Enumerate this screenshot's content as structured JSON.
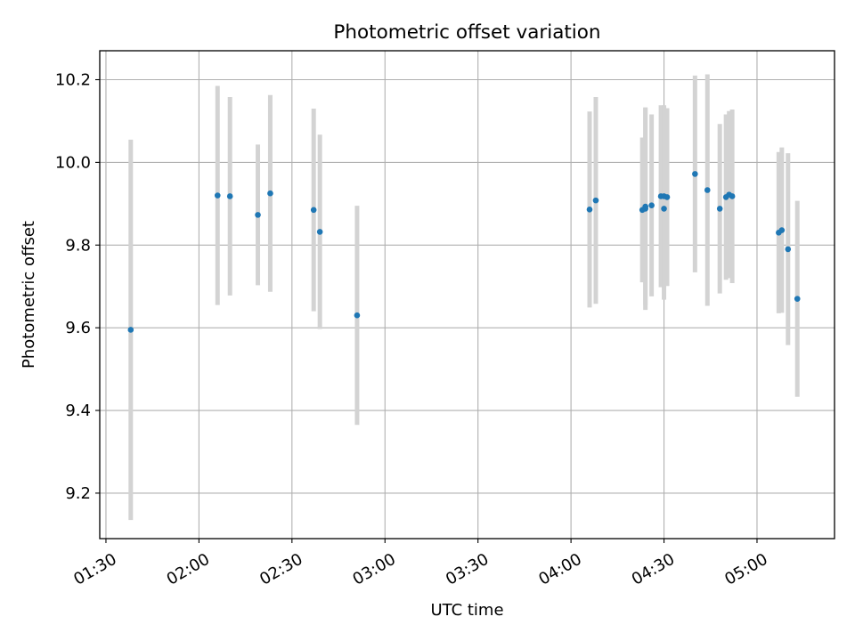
{
  "chart_data": {
    "type": "scatter",
    "title": "Photometric offset variation",
    "xlabel": "UTC time",
    "ylabel": "Photometric offset",
    "x_tick_labels": [
      "01:30",
      "02:00",
      "02:30",
      "03:00",
      "03:30",
      "04:00",
      "04:30",
      "05:00"
    ],
    "y_tick_labels": [
      "9.2",
      "9.4",
      "9.6",
      "9.8",
      "10.0",
      "10.2"
    ],
    "ylim": [
      9.09,
      10.27
    ],
    "xlim": [
      "01:28",
      "05:25"
    ],
    "grid": true,
    "marker_color": "#1f77b4",
    "errorbar_color": "#d3d3d3",
    "points": [
      {
        "x": "01:38",
        "y": 9.595,
        "err": 0.46
      },
      {
        "x": "02:06",
        "y": 9.92,
        "err": 0.265
      },
      {
        "x": "02:10",
        "y": 9.918,
        "err": 0.24
      },
      {
        "x": "02:19",
        "y": 9.873,
        "err": 0.17
      },
      {
        "x": "02:23",
        "y": 9.925,
        "err": 0.238
      },
      {
        "x": "02:37",
        "y": 9.885,
        "err": 0.245
      },
      {
        "x": "02:39",
        "y": 9.832,
        "err": 0.235
      },
      {
        "x": "02:51",
        "y": 9.63,
        "err": 0.265
      },
      {
        "x": "04:06",
        "y": 9.886,
        "err": 0.237
      },
      {
        "x": "04:08",
        "y": 9.908,
        "err": 0.25
      },
      {
        "x": "04:23",
        "y": 9.885,
        "err": 0.175
      },
      {
        "x": "04:24",
        "y": 9.888,
        "err": 0.245
      },
      {
        "x": "04:24",
        "y": 9.893,
        "err": 0.238
      },
      {
        "x": "04:26",
        "y": 9.896,
        "err": 0.22
      },
      {
        "x": "04:29",
        "y": 9.918,
        "err": 0.22
      },
      {
        "x": "04:30",
        "y": 9.888,
        "err": 0.22
      },
      {
        "x": "04:30",
        "y": 9.918,
        "err": 0.22
      },
      {
        "x": "04:31",
        "y": 9.916,
        "err": 0.215
      },
      {
        "x": "04:40",
        "y": 9.972,
        "err": 0.238
      },
      {
        "x": "04:44",
        "y": 9.933,
        "err": 0.28
      },
      {
        "x": "04:48",
        "y": 9.888,
        "err": 0.205
      },
      {
        "x": "04:50",
        "y": 9.916,
        "err": 0.2
      },
      {
        "x": "04:51",
        "y": 9.922,
        "err": 0.202
      },
      {
        "x": "04:52",
        "y": 9.918,
        "err": 0.21
      },
      {
        "x": "05:07",
        "y": 9.83,
        "err": 0.195
      },
      {
        "x": "05:08",
        "y": 9.836,
        "err": 0.2
      },
      {
        "x": "05:10",
        "y": 9.79,
        "err": 0.232
      },
      {
        "x": "05:13",
        "y": 9.67,
        "err": 0.237
      }
    ]
  }
}
